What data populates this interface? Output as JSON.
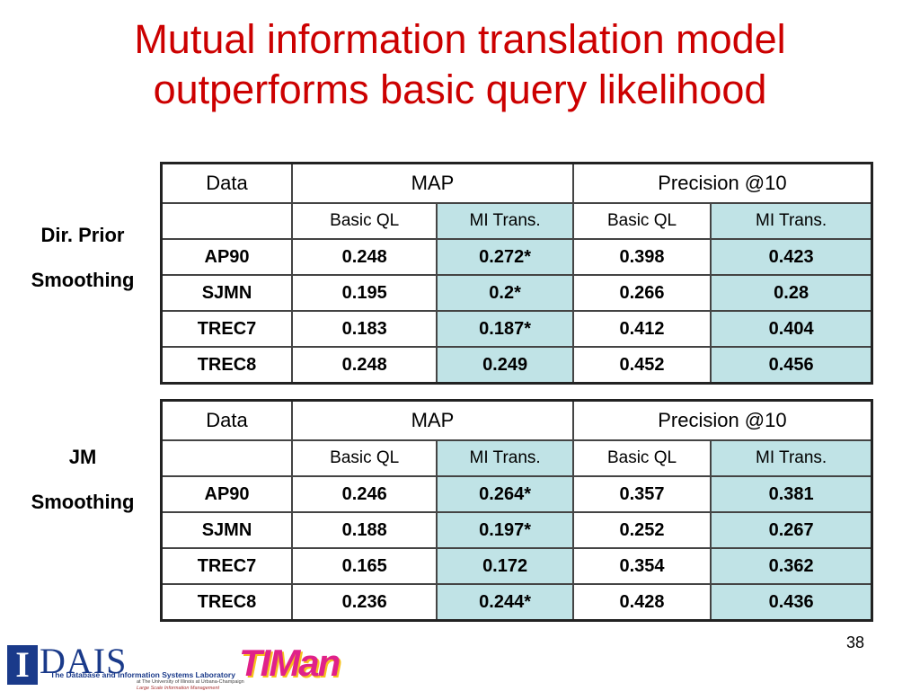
{
  "title": {
    "line1": "Mutual information translation model",
    "line2": "outperforms basic query likelihood"
  },
  "tables": [
    {
      "side_label": [
        "Dir.  Prior",
        "Smoothing"
      ],
      "header": {
        "data": "Data",
        "map": "MAP",
        "precision": "Precision @10"
      },
      "subheader": {
        "basic_ql": "Basic QL",
        "mi_trans": "MI Trans."
      },
      "rows": [
        {
          "dataset": "AP90",
          "map_basic": "0.248",
          "map_mi": "0.272*",
          "p_basic": "0.398",
          "p_mi": "0.423"
        },
        {
          "dataset": "SJMN",
          "map_basic": "0.195",
          "map_mi": "0.2*",
          "p_basic": "0.266",
          "p_mi": "0.28"
        },
        {
          "dataset": "TREC7",
          "map_basic": "0.183",
          "map_mi": "0.187*",
          "p_basic": "0.412",
          "p_mi": "0.404"
        },
        {
          "dataset": "TREC8",
          "map_basic": "0.248",
          "map_mi": "0.249",
          "p_basic": "0.452",
          "p_mi": "0.456"
        }
      ]
    },
    {
      "side_label": [
        "JM",
        "Smoothing"
      ],
      "header": {
        "data": "Data",
        "map": "MAP",
        "precision": "Precision @10"
      },
      "subheader": {
        "basic_ql": "Basic QL",
        "mi_trans": "MI Trans."
      },
      "rows": [
        {
          "dataset": "AP90",
          "map_basic": "0.246",
          "map_mi": "0.264*",
          "p_basic": "0.357",
          "p_mi": "0.381"
        },
        {
          "dataset": "SJMN",
          "map_basic": "0.188",
          "map_mi": "0.197*",
          "p_basic": "0.252",
          "p_mi": "0.267"
        },
        {
          "dataset": "TREC7",
          "map_basic": "0.165",
          "map_mi": "0.172",
          "p_basic": "0.354",
          "p_mi": "0.362"
        },
        {
          "dataset": "TREC8",
          "map_basic": "0.236",
          "map_mi": "0.244*",
          "p_basic": "0.428",
          "p_mi": "0.436"
        }
      ]
    }
  ],
  "page_number": "38",
  "footer": {
    "dais_logo_letter": "I",
    "dais_logo_word": "DAIS",
    "lab_name": "The Database and Information Systems Laboratory",
    "lab_affiliation": "at The University of Illinois at Urbana-Champaign",
    "lab_group": "Large Scale Information Management",
    "timan_logo": "TIMan"
  },
  "colors": {
    "title": "#cc0000",
    "mi_cell": "#c0e3e6",
    "border": "#444444"
  }
}
